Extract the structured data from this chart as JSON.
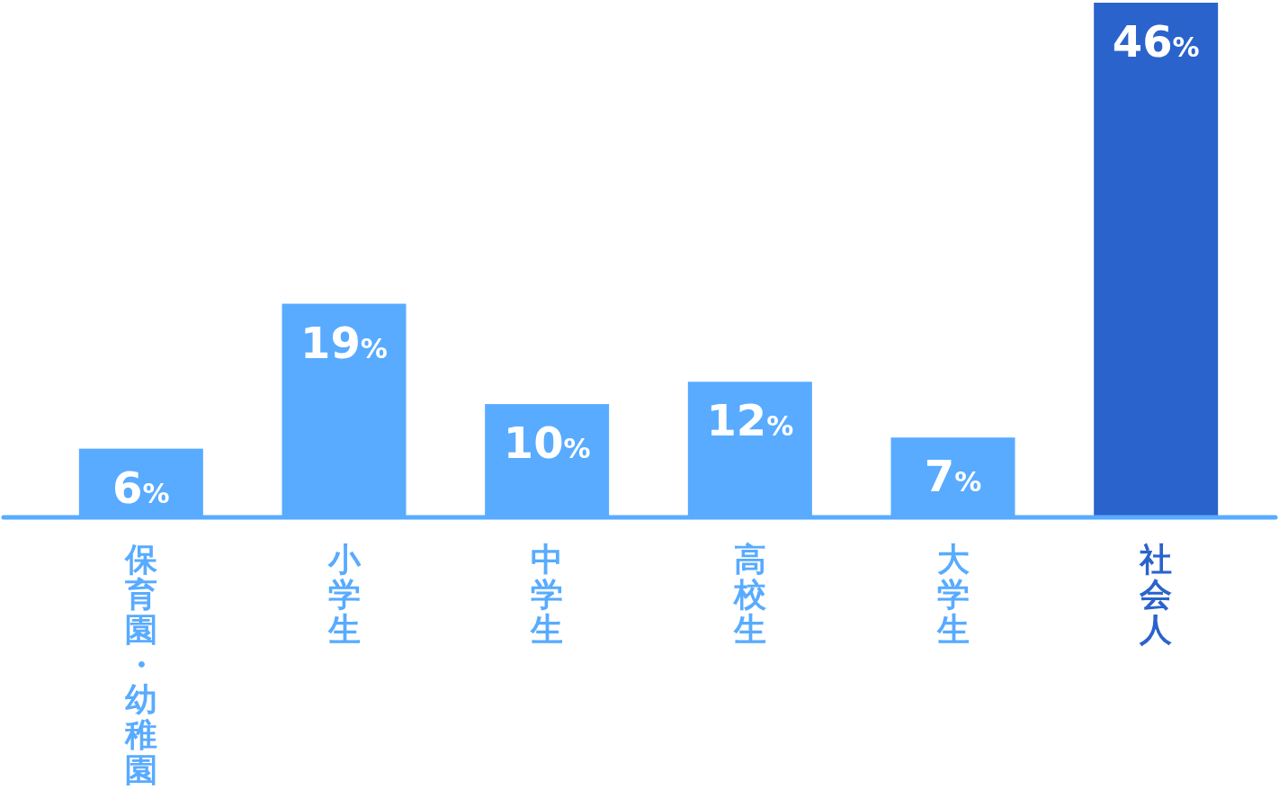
{
  "chart_data": {
    "type": "bar",
    "categories": [
      "保育園・幼稚園",
      "小学生",
      "中学生",
      "高校生",
      "大学生",
      "社会人"
    ],
    "values": [
      6,
      19,
      10,
      12,
      7,
      46
    ],
    "value_labels": [
      "6%",
      "19%",
      "10%",
      "12%",
      "7%",
      "46%"
    ],
    "colors": [
      "#58abff",
      "#58abff",
      "#58abff",
      "#58abff",
      "#58abff",
      "#2a63cc"
    ]
  }
}
